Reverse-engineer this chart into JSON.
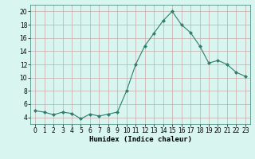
{
  "x": [
    0,
    1,
    2,
    3,
    4,
    5,
    6,
    7,
    8,
    9,
    10,
    11,
    12,
    13,
    14,
    15,
    16,
    17,
    18,
    19,
    20,
    21,
    22,
    23
  ],
  "y": [
    5.0,
    4.8,
    4.4,
    4.8,
    4.6,
    3.8,
    4.5,
    4.2,
    4.5,
    4.8,
    8.0,
    12.0,
    14.8,
    16.7,
    18.6,
    20.0,
    18.0,
    16.8,
    14.8,
    12.2,
    12.6,
    12.0,
    10.8,
    10.2
  ],
  "line_color": "#2e7d6e",
  "marker": "D",
  "marker_size": 2.0,
  "bg_color": "#d8f5f0",
  "grid_color": "#c8a8a8",
  "xlabel": "Humidex (Indice chaleur)",
  "ylim": [
    3,
    21
  ],
  "yticks": [
    4,
    6,
    8,
    10,
    12,
    14,
    16,
    18,
    20
  ],
  "xticks": [
    0,
    1,
    2,
    3,
    4,
    5,
    6,
    7,
    8,
    9,
    10,
    11,
    12,
    13,
    14,
    15,
    16,
    17,
    18,
    19,
    20,
    21,
    22,
    23
  ],
  "xlabel_fontsize": 6.5,
  "tick_fontsize": 5.5
}
